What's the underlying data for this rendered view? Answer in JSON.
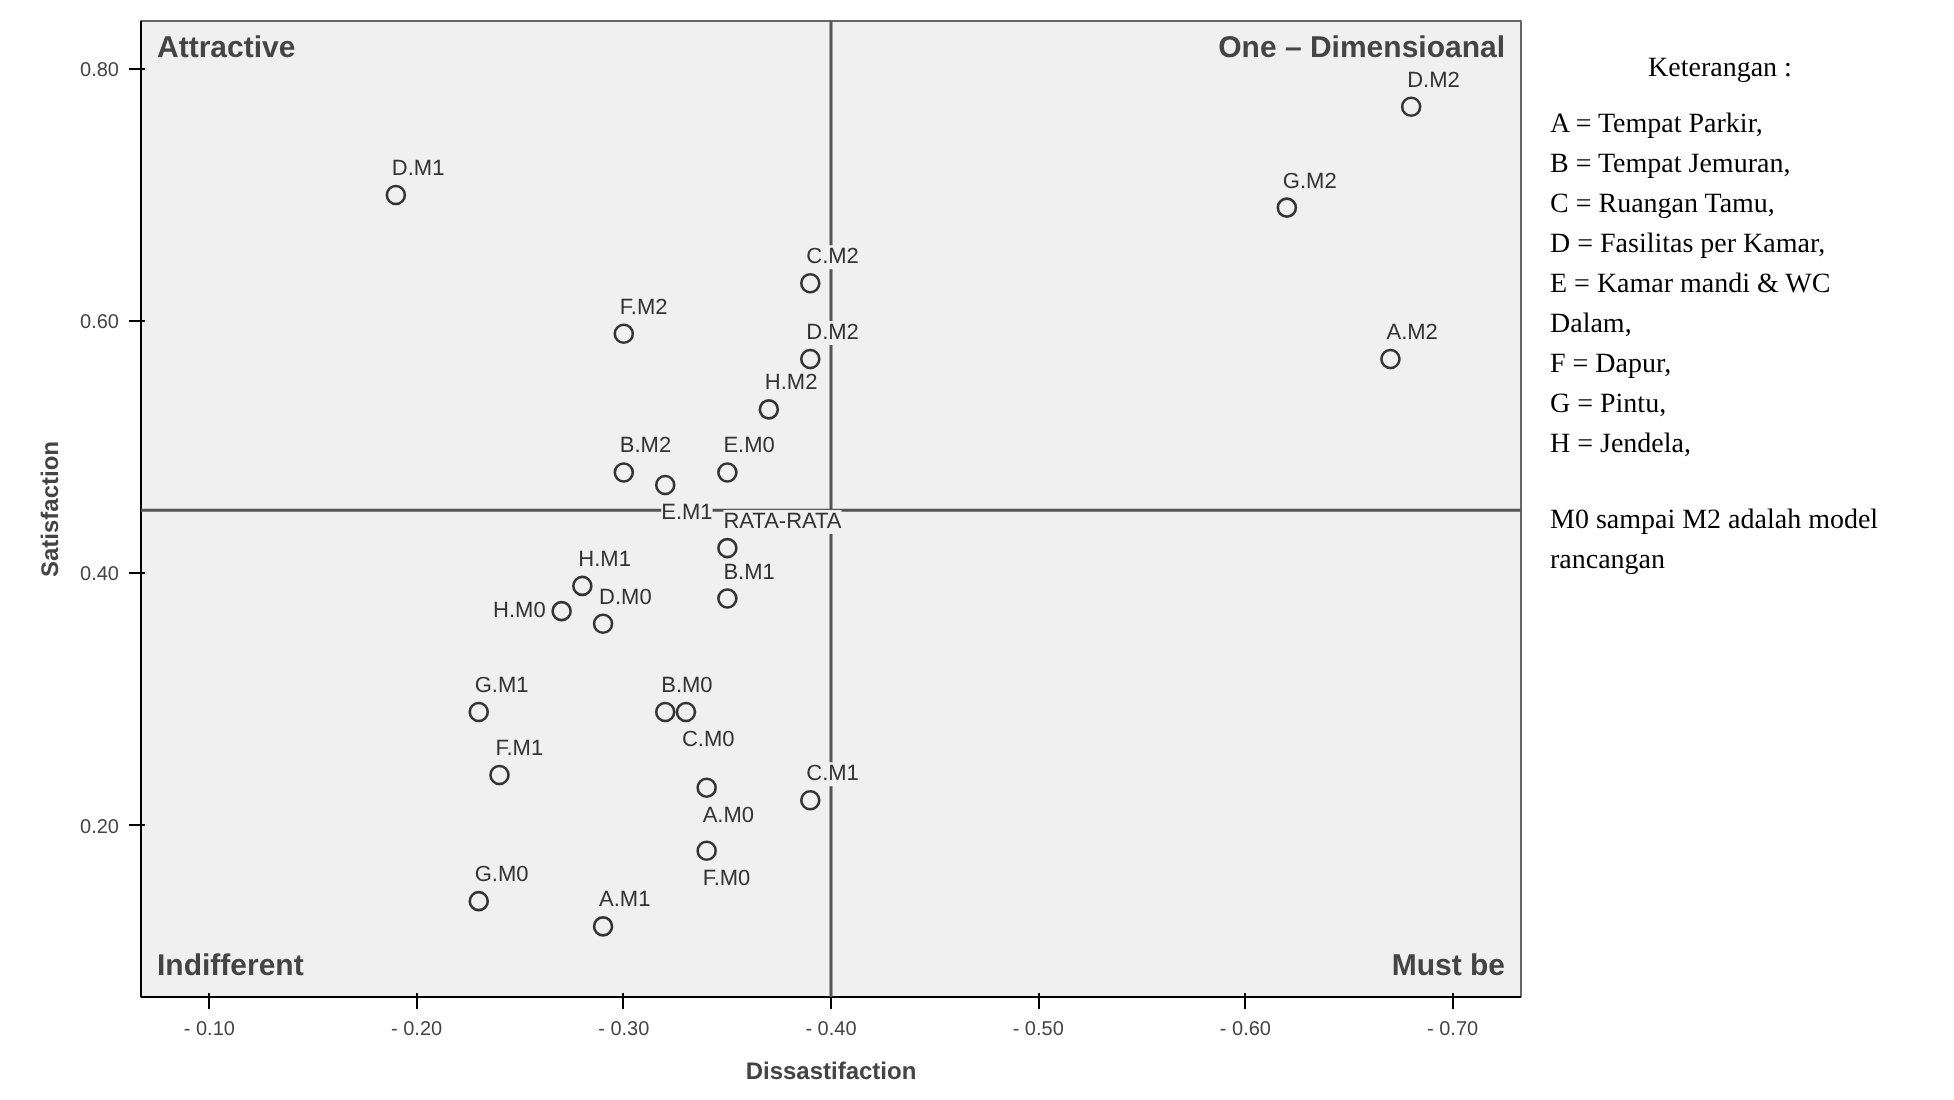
{
  "chart_data": {
    "type": "scatter",
    "xlabel": "Dissastifaction",
    "ylabel": "Satisfaction",
    "xlim": [
      -0.067,
      -0.733
    ],
    "ylim": [
      0.064,
      0.838
    ],
    "xticks": [
      {
        "value": -0.1,
        "label": "- 0.10"
      },
      {
        "value": -0.2,
        "label": "- 0.20"
      },
      {
        "value": -0.3,
        "label": "- 0.30"
      },
      {
        "value": -0.4,
        "label": "- 0.40"
      },
      {
        "value": -0.5,
        "label": "- 0.50"
      },
      {
        "value": -0.6,
        "label": "- 0.60"
      },
      {
        "value": -0.7,
        "label": "- 0.70"
      }
    ],
    "yticks": [
      {
        "value": 0.2,
        "label": "0.20"
      },
      {
        "value": 0.4,
        "label": "0.40"
      },
      {
        "value": 0.6,
        "label": "0.60"
      },
      {
        "value": 0.8,
        "label": "0.80"
      }
    ],
    "grid": false,
    "marker": "circle",
    "series": [
      {
        "color": "#333333",
        "x": [
          -0.19,
          -0.3,
          -0.39,
          -0.39,
          -0.37,
          -0.3,
          -0.35,
          -0.32,
          -0.35,
          -0.28,
          -0.27,
          -0.29,
          -0.35,
          -0.23,
          -0.32,
          -0.33,
          -0.24,
          -0.34,
          -0.39,
          -0.34,
          -0.23,
          -0.29,
          -0.68,
          -0.62,
          -0.67
        ],
        "values": [
          0.7,
          0.59,
          0.63,
          0.57,
          0.53,
          0.48,
          0.48,
          0.47,
          0.42,
          0.39,
          0.37,
          0.36,
          0.38,
          0.29,
          0.29,
          0.29,
          0.24,
          0.23,
          0.22,
          0.18,
          0.14,
          0.12,
          0.77,
          0.69,
          0.57
        ],
        "value_labels": [
          "D.M1",
          "F.M2",
          "C.M2",
          "D.M2",
          "H.M2",
          "B.M2",
          "E.M0",
          "E.M1",
          "RATA-RATA",
          "H.M1",
          "H.M0",
          "D.M0",
          "B.M1",
          "G.M1",
          "B.M0",
          "C.M0",
          "F.M1",
          "A.M0",
          "C.M1",
          "F.M0",
          "G.M0",
          "A.M1",
          "D.M2",
          "G.M2",
          "A.M2"
        ]
      }
    ],
    "ref_lines": [
      {
        "axis": "x",
        "value": -0.4,
        "color": "#555555"
      },
      {
        "axis": "y",
        "value": 0.45,
        "color": "#555555"
      }
    ],
    "annotations": [
      "Attractive",
      "One – Dimensioanal",
      "Indifferent",
      "Must be",
      "Keterangan :",
      "A = Tempat Parkir,",
      "B = Tempat Jemuran,",
      "C = Ruangan Tamu,",
      "D = Fasilitas per Kamar,",
      "E = Kamar mandi & WC  Dalam,",
      "F = Dapur,",
      "G = Pintu,",
      "H = Jendela,",
      "M0 sampai M2 adalah model rancangan"
    ]
  }
}
